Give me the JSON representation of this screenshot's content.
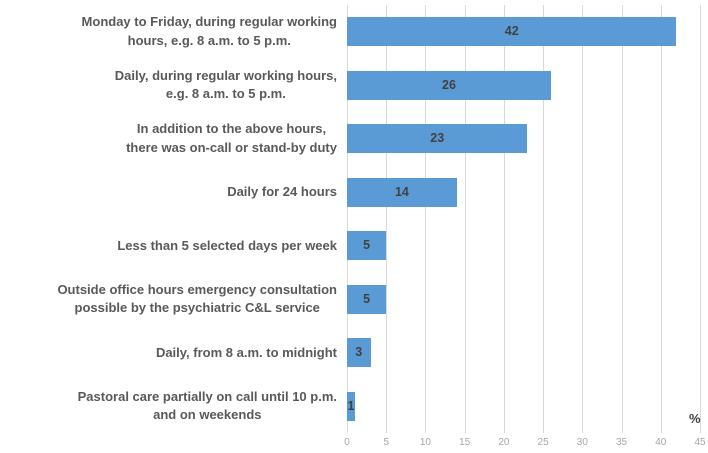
{
  "chart_data": {
    "type": "bar",
    "orientation": "horizontal",
    "categories": [
      "Monday to Friday, during regular working\nhours, e.g. 8 a.m. to 5 p.m.",
      "Daily, during regular working hours,\ne.g. 8 a.m. to 5 p.m.",
      "In addition to the above hours,\nthere was on-call or stand-by duty",
      "Daily for 24 hours",
      "Less than 5 selected days per week",
      "Outside office hours emergency consultation\npossible by the psychiatric C&L service",
      "Daily, from 8 a.m. to midnight",
      "Pastoral care partially on call until 10 p.m.\nand on weekends"
    ],
    "values": [
      42,
      26,
      23,
      14,
      5,
      5,
      3,
      1
    ],
    "title": "",
    "xlabel": "%",
    "ylabel": "",
    "xlim": [
      0,
      45
    ],
    "xticks": [
      0,
      5,
      10,
      15,
      20,
      25,
      30,
      35,
      40,
      45
    ],
    "grid": true,
    "data_labels_position": "center",
    "colors": {
      "bar": "#5B9BD5",
      "value_label": "#404040",
      "category_label": "#595959",
      "tick_label": "#A6A6A6",
      "gridline": "#D9D9D9",
      "unit_label": "#404040"
    }
  }
}
